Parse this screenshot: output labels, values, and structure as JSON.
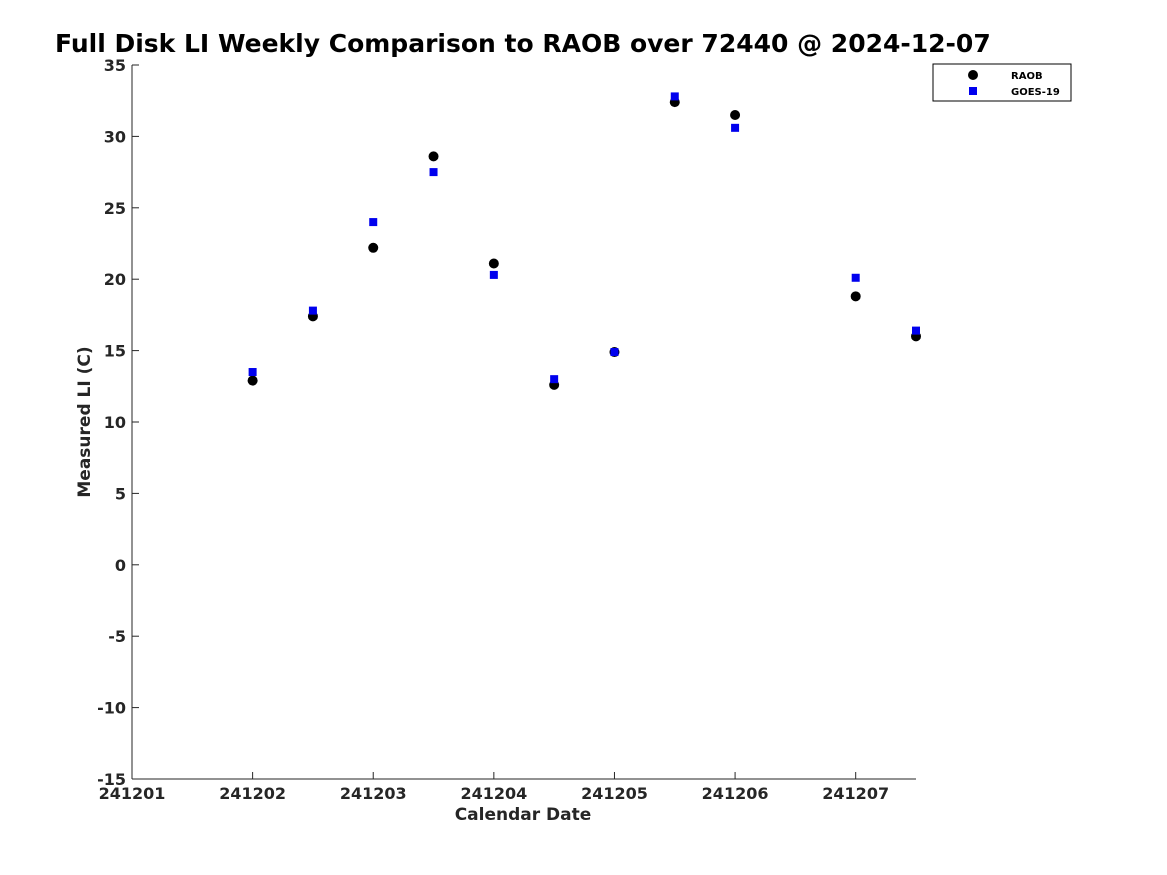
{
  "chart_data": {
    "type": "scatter",
    "title": "Full Disk LI Weekly Comparison to RAOB over 72440 @ 2024-12-07",
    "xlabel": "Calendar Date",
    "ylabel": "Measured LI (C)",
    "xlim": [
      241201,
      241207.5
    ],
    "ylim": [
      -15,
      35
    ],
    "xticks": [
      241201,
      241202,
      241203,
      241204,
      241205,
      241206,
      241207
    ],
    "xtick_labels": [
      "241201",
      "241202",
      "241203",
      "241204",
      "241205",
      "241206",
      "241207"
    ],
    "yticks": [
      -15,
      -10,
      -5,
      0,
      5,
      10,
      15,
      20,
      25,
      30,
      35
    ],
    "ytick_labels": [
      "-15",
      "-10",
      "-5",
      "0",
      "5",
      "10",
      "15",
      "20",
      "25",
      "30",
      "35"
    ],
    "grid": false,
    "legend_position": "top-right",
    "series": [
      {
        "name": "RAOB",
        "marker": "circle",
        "color": "#000000",
        "x": [
          241202,
          241202.5,
          241203,
          241203.5,
          241204,
          241204.5,
          241205,
          241205.5,
          241206,
          241207,
          241207.5
        ],
        "y": [
          12.9,
          17.4,
          22.2,
          28.6,
          21.1,
          12.6,
          14.9,
          32.4,
          31.5,
          18.8,
          16.0
        ]
      },
      {
        "name": "GOES-19",
        "marker": "square",
        "color": "#0000ee",
        "x": [
          241202,
          241202.5,
          241203,
          241203.5,
          241204,
          241204.5,
          241205,
          241205.5,
          241206,
          241207,
          241207.5
        ],
        "y": [
          13.5,
          17.8,
          24.0,
          27.5,
          20.3,
          13.0,
          14.9,
          32.8,
          30.6,
          20.1,
          16.4
        ]
      }
    ]
  }
}
